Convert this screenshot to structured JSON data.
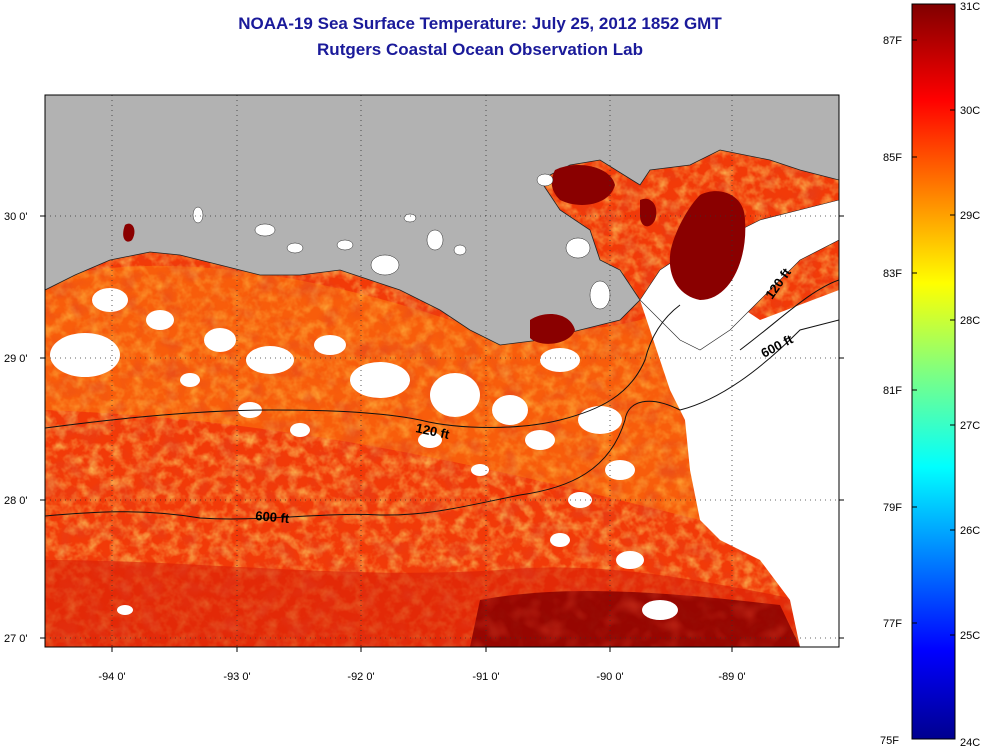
{
  "header": {
    "title": "NOAA-19 Sea Surface Temperature:  July 25, 2012 1852 GMT",
    "subtitle": "Rutgers Coastal Ocean Observation Lab"
  },
  "map": {
    "longitude_labels": [
      "-94 0'",
      "-93 0'",
      "-92 0'",
      "-91 0'",
      "-90 0'",
      "-89 0'"
    ],
    "latitude_labels": [
      "30 0'",
      "29 0'",
      "28 0'",
      "27 0'"
    ],
    "grid": "dotted",
    "land_color": "#b2b2b2",
    "cloud_color": "#ffffff",
    "contours": [
      {
        "label": "120 ft"
      },
      {
        "label": "600 ft"
      },
      {
        "label": "120 ft"
      },
      {
        "label": "600 ft"
      }
    ]
  },
  "colorbar": {
    "celsius_labels": [
      "31C",
      "30C",
      "29C",
      "28C",
      "27C",
      "26C",
      "25C",
      "24C"
    ],
    "fahrenheit_labels": [
      "87F",
      "85F",
      "83F",
      "81F",
      "79F",
      "77F",
      "75F"
    ],
    "colormap": "jet"
  }
}
